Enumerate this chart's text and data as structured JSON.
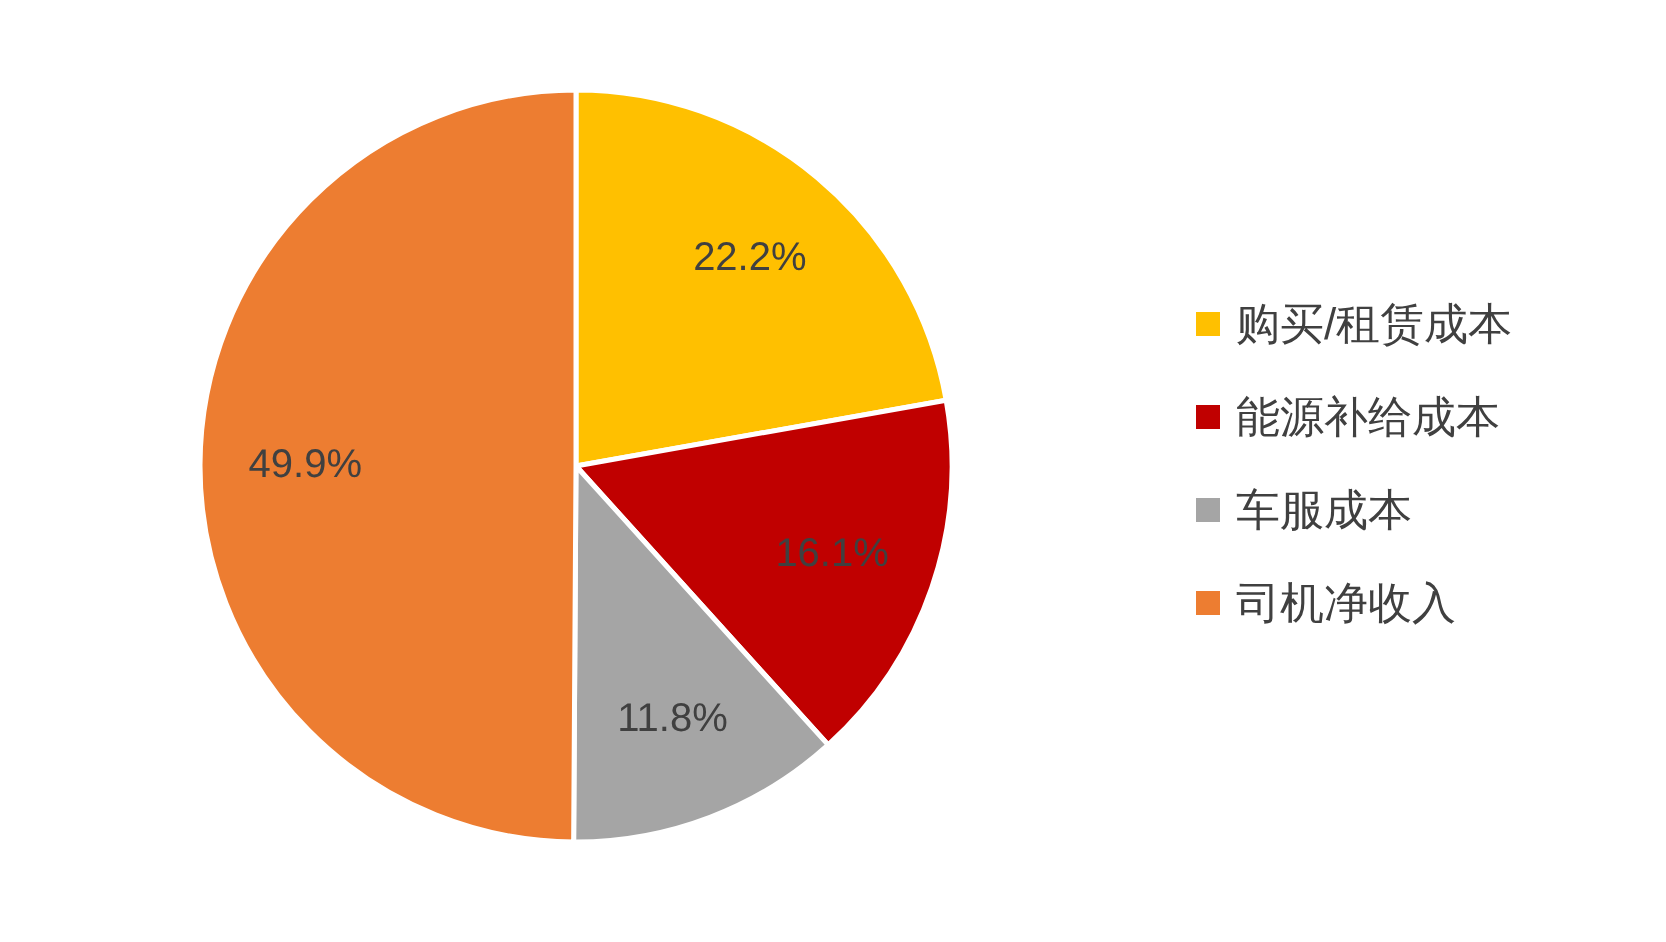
{
  "chart_data": {
    "type": "pie",
    "categories": [
      "购买/租赁成本",
      "能源补给成本",
      "车服成本",
      "司机净收入"
    ],
    "values": [
      22.2,
      16.1,
      11.8,
      49.9
    ],
    "value_labels": [
      "22.2%",
      "16.1%",
      "11.8%",
      "49.9%"
    ],
    "colors": [
      "#ffc000",
      "#c00000",
      "#a5a5a5",
      "#ed7d31"
    ],
    "legend": "right"
  }
}
